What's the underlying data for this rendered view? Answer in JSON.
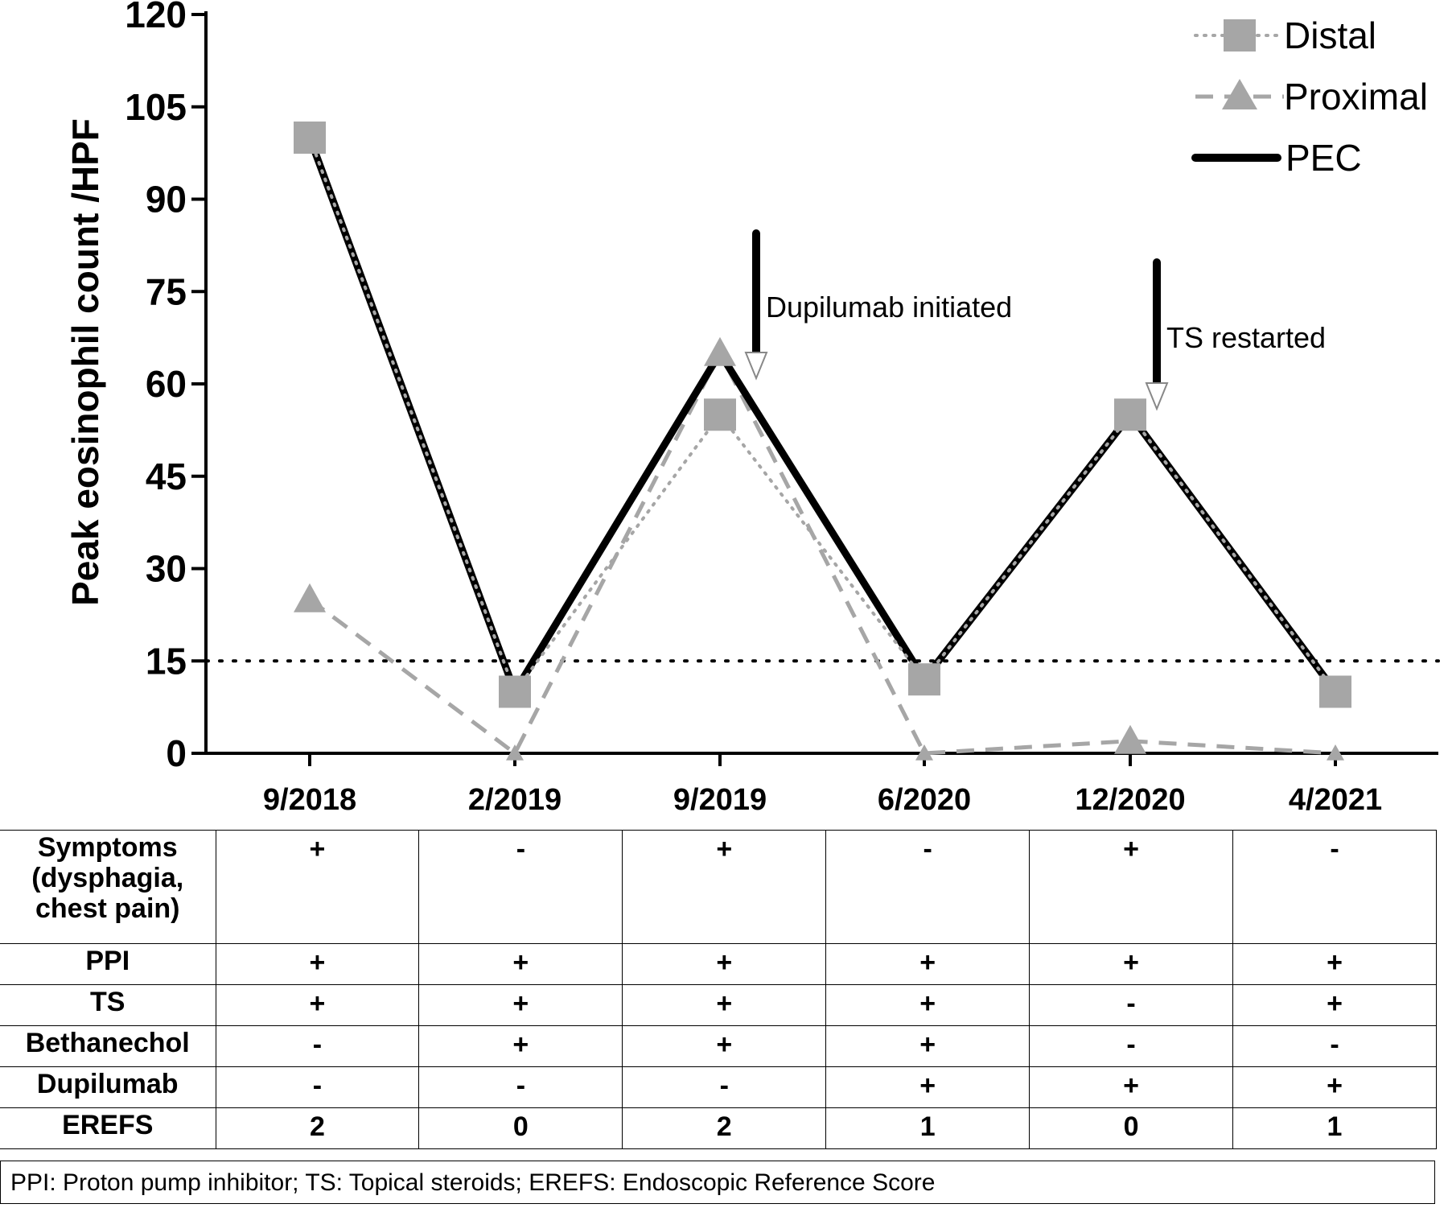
{
  "chart_data": {
    "type": "line",
    "ylabel": "Peak eosinophil count /HPF",
    "xlabel": "",
    "categories": [
      "9/2018",
      "2/2019",
      "9/2019",
      "6/2020",
      "12/2020",
      "4/2021"
    ],
    "ylim": [
      0,
      120
    ],
    "yticks": [
      0,
      15,
      30,
      45,
      60,
      75,
      90,
      105,
      120
    ],
    "threshold": 15,
    "series": [
      {
        "name": "Distal",
        "values": [
          100,
          10,
          55,
          12,
          55,
          10
        ],
        "marker": "square",
        "line": "dotted",
        "color": "#a6a6a6"
      },
      {
        "name": "Proximal",
        "values": [
          25,
          0,
          65,
          0,
          2,
          0
        ],
        "marker": "triangle",
        "line": "dashed",
        "color": "#a6a6a6"
      },
      {
        "name": "PEC",
        "values": [
          100,
          10,
          65,
          12,
          55,
          10
        ],
        "marker": "none",
        "line": "solid",
        "color": "#000000"
      }
    ],
    "annotations": [
      {
        "text": "Dupilumab initiated",
        "near_category": "9/2019"
      },
      {
        "text": "TS restarted",
        "near_category": "12/2020"
      }
    ],
    "legend_position": "top-right",
    "grid": false
  },
  "table": {
    "rows": [
      {
        "label": "Symptoms (dysphagia, chest pain)",
        "label_lines": [
          "Symptoms",
          "(dysphagia,",
          "chest pain)"
        ],
        "values": [
          "+",
          "-",
          "+",
          "-",
          "+",
          "-"
        ]
      },
      {
        "label": "PPI",
        "values": [
          "+",
          "+",
          "+",
          "+",
          "+",
          "+"
        ]
      },
      {
        "label": "TS",
        "values": [
          "+",
          "+",
          "+",
          "+",
          "-",
          "+"
        ]
      },
      {
        "label": "Bethanechol",
        "values": [
          "-",
          "+",
          "+",
          "+",
          "-",
          "-"
        ]
      },
      {
        "label": "Dupilumab",
        "values": [
          "-",
          "-",
          "-",
          "+",
          "+",
          "+"
        ]
      },
      {
        "label": "EREFS",
        "values": [
          "2",
          "0",
          "2",
          "1",
          "0",
          "1"
        ]
      }
    ]
  },
  "footnote": "PPI: Proton pump inhibitor; TS: Topical steroids; EREFS: Endoscopic Reference Score"
}
